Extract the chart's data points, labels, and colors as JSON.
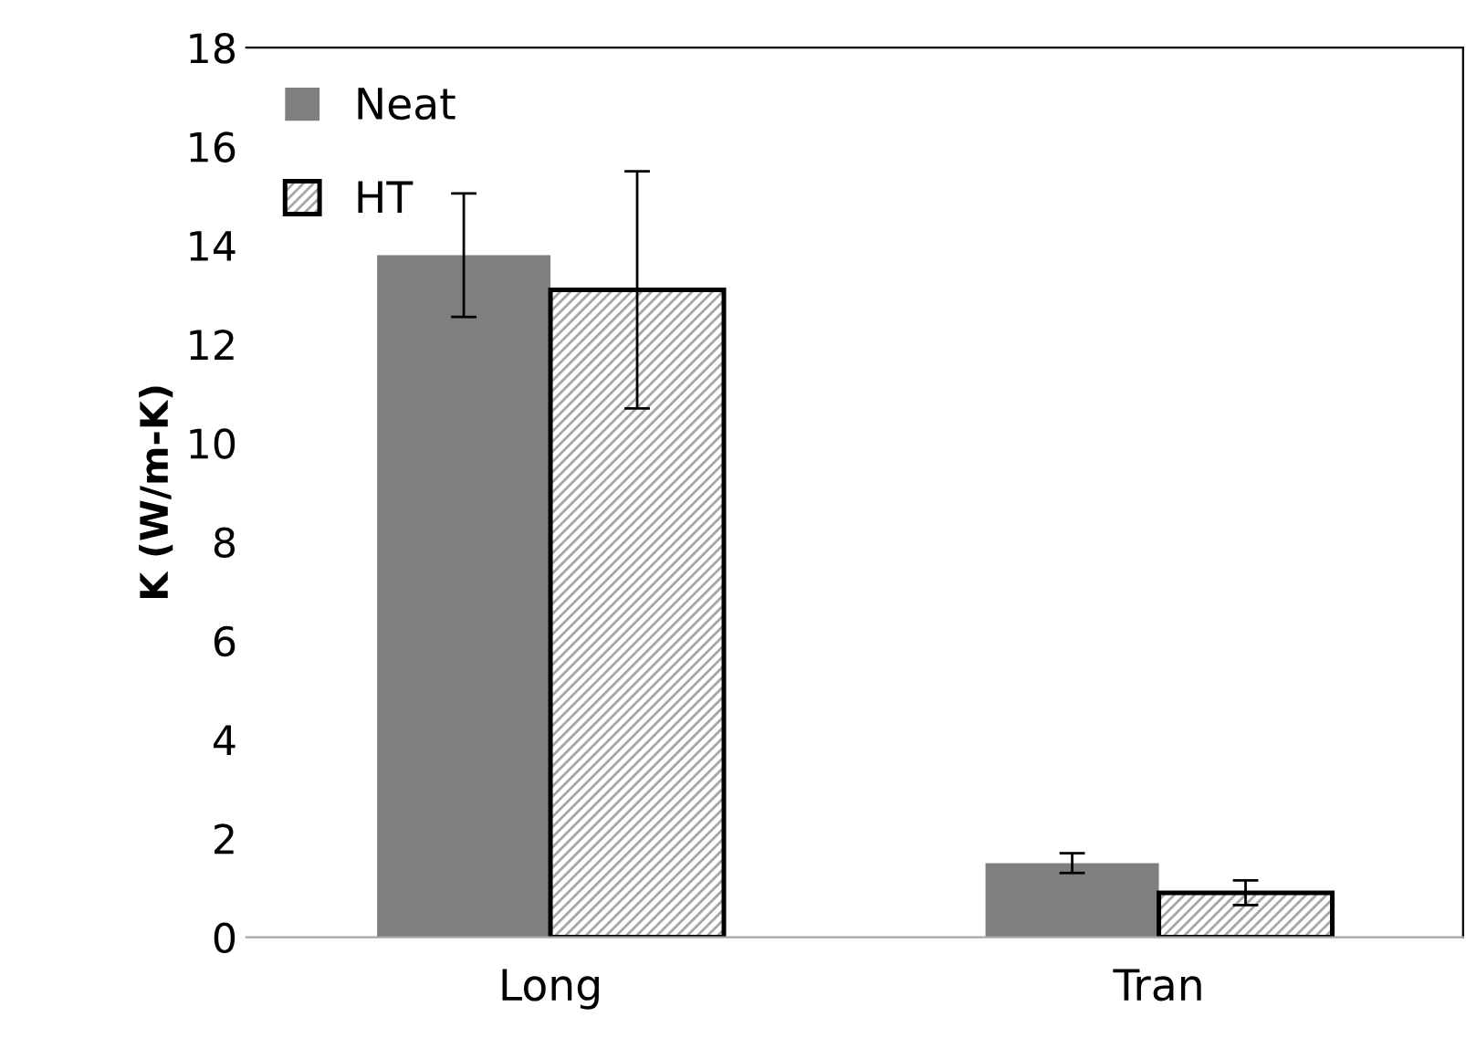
{
  "chart_data": {
    "type": "bar",
    "ylabel": "K (W/m-K)",
    "categories": [
      "Long",
      "Tran"
    ],
    "series": [
      {
        "name": "Neat",
        "color": "#7f7f7f",
        "values": [
          13.8,
          1.5
        ],
        "errors": [
          1.25,
          0.2
        ]
      },
      {
        "name": "HT",
        "color": "#000000",
        "values": [
          13.1,
          0.9
        ],
        "errors": [
          2.4,
          0.25
        ]
      }
    ],
    "ylim": [
      0,
      18
    ],
    "yticks": [
      0,
      2,
      4,
      6,
      8,
      10,
      12,
      14,
      16,
      18
    ],
    "grid": false,
    "legend": "top left"
  }
}
